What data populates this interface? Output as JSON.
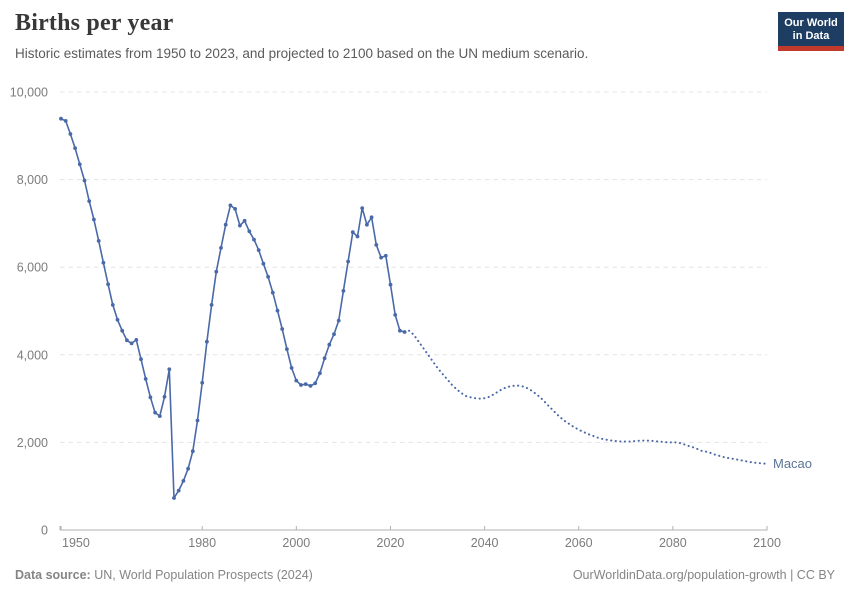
{
  "header": {
    "title": "Births per year",
    "subtitle": "Historic estimates from 1950 to 2023, and projected to 2100 based on the UN medium scenario."
  },
  "logo": {
    "line1": "Our World",
    "line2": "in Data",
    "bg_color": "#1d3d63",
    "accent_color": "#c0392b"
  },
  "chart_data": {
    "type": "line",
    "title": "Births per year",
    "entity": "Macao",
    "xlabel": "",
    "ylabel": "",
    "xlim": [
      1950,
      2100
    ],
    "ylim": [
      0,
      10000
    ],
    "grid": "horizontal-dashed",
    "legend_position": "end-of-line-label",
    "x_ticks": [
      1950,
      1980,
      2000,
      2020,
      2040,
      2060,
      2080,
      2100
    ],
    "y_ticks": [
      0,
      2000,
      4000,
      6000,
      8000,
      10000
    ],
    "y_tick_labels": [
      "0",
      "2,000",
      "4,000",
      "6,000",
      "8,000",
      "10,000"
    ],
    "line_color": "#4a69a8",
    "entity_label_color": "#5b7596",
    "series": [
      {
        "name": "historic estimates",
        "style": "solid-with-markers",
        "start_year": 1950,
        "end_year": 2023,
        "values": [
          9390,
          9340,
          9040,
          8720,
          8350,
          7980,
          7510,
          7090,
          6600,
          6100,
          5610,
          5140,
          4800,
          4550,
          4330,
          4260,
          4340,
          3900,
          3450,
          3030,
          2680,
          2600,
          3040,
          3670,
          730,
          900,
          1120,
          1400,
          1800,
          2500,
          3360,
          4300,
          5140,
          5900,
          6440,
          6970,
          7410,
          7330,
          6950,
          7060,
          6820,
          6630,
          6390,
          6080,
          5780,
          5420,
          5010,
          4590,
          4130,
          3700,
          3410,
          3310,
          3330,
          3290,
          3350,
          3580,
          3920,
          4230,
          4470,
          4780,
          5460,
          6130,
          6800,
          6700,
          7350,
          6970,
          7140,
          6510,
          6220,
          6260,
          5600,
          4910,
          4550,
          4520
        ]
      },
      {
        "name": "UN medium scenario projection",
        "style": "dotted",
        "start_year": 2024,
        "end_year": 2100,
        "values": [
          4550,
          4450,
          4300,
          4150,
          4000,
          3850,
          3700,
          3570,
          3450,
          3320,
          3220,
          3130,
          3060,
          3030,
          3010,
          3000,
          3010,
          3040,
          3100,
          3170,
          3230,
          3270,
          3290,
          3300,
          3280,
          3240,
          3180,
          3100,
          3010,
          2900,
          2790,
          2680,
          2580,
          2490,
          2420,
          2350,
          2290,
          2240,
          2190,
          2150,
          2110,
          2080,
          2060,
          2040,
          2030,
          2020,
          2020,
          2020,
          2030,
          2040,
          2040,
          2040,
          2030,
          2020,
          2010,
          2000,
          2000,
          2000,
          1970,
          1930,
          1900,
          1860,
          1810,
          1790,
          1760,
          1720,
          1690,
          1660,
          1640,
          1620,
          1600,
          1580,
          1560,
          1540,
          1530,
          1520,
          1510
        ]
      }
    ]
  },
  "footer": {
    "source_label": "Data source:",
    "source_text": " UN, World Population Prospects (2024)",
    "credit": "OurWorldinData.org/population-growth | CC BY"
  }
}
